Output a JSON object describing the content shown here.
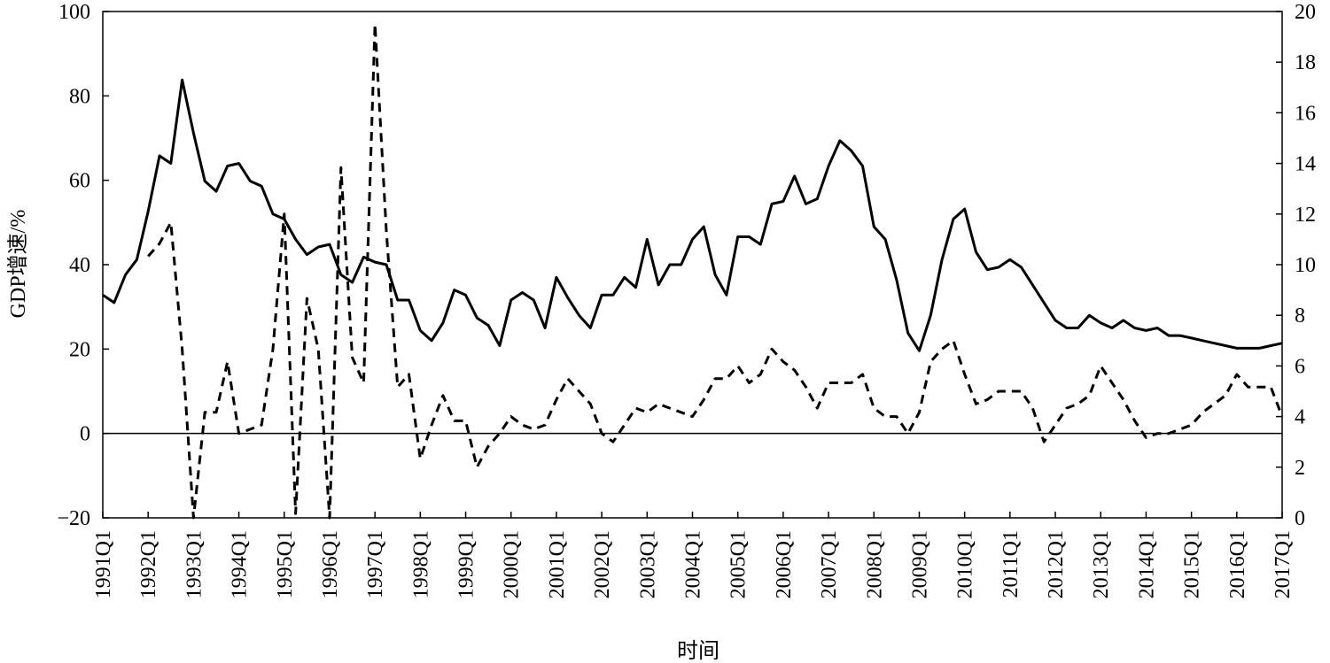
{
  "chart_data": {
    "type": "line",
    "ylabel": "GDP增速/%",
    "xlabel": "时间",
    "y_left": {
      "min": -20,
      "max": 100,
      "ticks": [
        "−20",
        "0",
        "20",
        "40",
        "60",
        "80",
        "100"
      ]
    },
    "y_right": {
      "min": 0,
      "max": 20,
      "ticks": [
        "0",
        "2",
        "4",
        "6",
        "8",
        "10",
        "12",
        "14",
        "16",
        "18",
        "20"
      ]
    },
    "x_ticks": [
      "1991Q1",
      "1992Q1",
      "1993Q1",
      "1994Q1",
      "1995Q1",
      "1996Q1",
      "1997Q1",
      "1998Q1",
      "1999Q1",
      "2000Q1",
      "2001Q1",
      "2002Q1",
      "2003Q1",
      "2004Q1",
      "2005Q1",
      "2006Q1",
      "2007Q1",
      "2008Q1",
      "2009Q1",
      "2010Q1",
      "2011Q1",
      "2012Q1",
      "2013Q1",
      "2014Q1",
      "2015Q1",
      "2016Q1",
      "2017Q1"
    ],
    "grid": false,
    "legend": "none",
    "series": [
      {
        "style": "solid",
        "axis": "right",
        "color": "#000000",
        "points": [
          [
            1991.0,
            8.8
          ],
          [
            1991.25,
            8.5
          ],
          [
            1991.5,
            9.6
          ],
          [
            1991.75,
            10.2
          ],
          [
            1992.0,
            12.1
          ],
          [
            1992.25,
            14.3
          ],
          [
            1992.5,
            14.0
          ],
          [
            1992.75,
            17.3
          ],
          [
            1993.0,
            15.2
          ],
          [
            1993.25,
            13.3
          ],
          [
            1993.5,
            12.9
          ],
          [
            1993.75,
            13.9
          ],
          [
            1994.0,
            14.0
          ],
          [
            1994.25,
            13.3
          ],
          [
            1994.5,
            13.1
          ],
          [
            1994.75,
            12.0
          ],
          [
            1995.0,
            11.8
          ],
          [
            1995.25,
            11.0
          ],
          [
            1995.5,
            10.4
          ],
          [
            1995.75,
            10.7
          ],
          [
            1996.0,
            10.8
          ],
          [
            1996.25,
            9.6
          ],
          [
            1996.5,
            9.3
          ],
          [
            1996.75,
            10.3
          ],
          [
            1997.0,
            10.1
          ],
          [
            1997.25,
            10.0
          ],
          [
            1997.5,
            8.6
          ],
          [
            1997.75,
            8.6
          ],
          [
            1998.0,
            7.4
          ],
          [
            1998.25,
            7.0
          ],
          [
            1998.5,
            7.7
          ],
          [
            1998.75,
            9.0
          ],
          [
            1999.0,
            8.8
          ],
          [
            1999.25,
            7.9
          ],
          [
            1999.5,
            7.6
          ],
          [
            1999.75,
            6.8
          ],
          [
            2000.0,
            8.6
          ],
          [
            2000.25,
            8.9
          ],
          [
            2000.5,
            8.6
          ],
          [
            2000.75,
            7.5
          ],
          [
            2001.0,
            9.5
          ],
          [
            2001.25,
            8.7
          ],
          [
            2001.5,
            8.0
          ],
          [
            2001.75,
            7.5
          ],
          [
            2002.0,
            8.8
          ],
          [
            2002.25,
            8.8
          ],
          [
            2002.5,
            9.5
          ],
          [
            2002.75,
            9.1
          ],
          [
            2003.0,
            11.0
          ],
          [
            2003.25,
            9.2
          ],
          [
            2003.5,
            10.0
          ],
          [
            2003.75,
            10.0
          ],
          [
            2004.0,
            11.0
          ],
          [
            2004.25,
            11.5
          ],
          [
            2004.5,
            9.6
          ],
          [
            2004.75,
            8.8
          ],
          [
            2005.0,
            11.1
          ],
          [
            2005.25,
            11.1
          ],
          [
            2005.5,
            10.8
          ],
          [
            2005.75,
            12.4
          ],
          [
            2006.0,
            12.5
          ],
          [
            2006.25,
            13.5
          ],
          [
            2006.5,
            12.4
          ],
          [
            2006.75,
            12.6
          ],
          [
            2007.0,
            13.9
          ],
          [
            2007.25,
            14.9
          ],
          [
            2007.5,
            14.5
          ],
          [
            2007.75,
            13.9
          ],
          [
            2008.0,
            11.5
          ],
          [
            2008.25,
            11.0
          ],
          [
            2008.5,
            9.4
          ],
          [
            2008.75,
            7.3
          ],
          [
            2009.0,
            6.6
          ],
          [
            2009.25,
            8.0
          ],
          [
            2009.5,
            10.2
          ],
          [
            2009.75,
            11.8
          ],
          [
            2010.0,
            12.2
          ],
          [
            2010.25,
            10.5
          ],
          [
            2010.5,
            9.8
          ],
          [
            2010.75,
            9.9
          ],
          [
            2011.0,
            10.2
          ],
          [
            2011.25,
            9.9
          ],
          [
            2011.5,
            9.2
          ],
          [
            2011.75,
            8.5
          ],
          [
            2012.0,
            7.8
          ],
          [
            2012.25,
            7.5
          ],
          [
            2012.5,
            7.5
          ],
          [
            2012.75,
            8.0
          ],
          [
            2013.0,
            7.7
          ],
          [
            2013.25,
            7.5
          ],
          [
            2013.5,
            7.8
          ],
          [
            2013.75,
            7.5
          ],
          [
            2014.0,
            7.4
          ],
          [
            2014.25,
            7.5
          ],
          [
            2014.5,
            7.2
          ],
          [
            2014.75,
            7.2
          ],
          [
            2015.0,
            7.1
          ],
          [
            2015.25,
            7.0
          ],
          [
            2015.5,
            6.9
          ],
          [
            2015.75,
            6.8
          ],
          [
            2016.0,
            6.7
          ],
          [
            2016.25,
            6.7
          ],
          [
            2016.5,
            6.7
          ],
          [
            2016.75,
            6.8
          ],
          [
            2017.0,
            6.9
          ]
        ]
      },
      {
        "style": "dashed",
        "axis": "left",
        "color": "#000000",
        "points": [
          [
            1992.0,
            42
          ],
          [
            1992.25,
            45
          ],
          [
            1992.5,
            50
          ],
          [
            1992.75,
            20
          ],
          [
            1993.0,
            -20
          ],
          [
            1993.25,
            5
          ],
          [
            1993.5,
            5
          ],
          [
            1993.75,
            17
          ],
          [
            1994.0,
            0
          ],
          [
            1994.25,
            1
          ],
          [
            1994.5,
            2
          ],
          [
            1994.75,
            20
          ],
          [
            1995.0,
            52
          ],
          [
            1995.25,
            -19
          ],
          [
            1995.5,
            32
          ],
          [
            1995.75,
            20
          ],
          [
            1996.0,
            -20
          ],
          [
            1996.25,
            63
          ],
          [
            1996.5,
            18
          ],
          [
            1996.75,
            12
          ],
          [
            1997.0,
            97
          ],
          [
            1997.25,
            48
          ],
          [
            1997.5,
            11
          ],
          [
            1997.75,
            14
          ],
          [
            1998.0,
            -6
          ],
          [
            1998.25,
            2
          ],
          [
            1998.5,
            9
          ],
          [
            1998.75,
            3
          ],
          [
            1999.0,
            3
          ],
          [
            1999.25,
            -8
          ],
          [
            1999.5,
            -3
          ],
          [
            1999.75,
            0
          ],
          [
            2000.0,
            4
          ],
          [
            2000.25,
            2
          ],
          [
            2000.5,
            1
          ],
          [
            2000.75,
            2
          ],
          [
            2001.0,
            8
          ],
          [
            2001.25,
            13
          ],
          [
            2001.5,
            10
          ],
          [
            2001.75,
            7
          ],
          [
            2002.0,
            0
          ],
          [
            2002.25,
            -2
          ],
          [
            2002.5,
            2
          ],
          [
            2002.75,
            6
          ],
          [
            2003.0,
            5
          ],
          [
            2003.25,
            7
          ],
          [
            2003.5,
            6
          ],
          [
            2003.75,
            5
          ],
          [
            2004.0,
            4
          ],
          [
            2004.25,
            8
          ],
          [
            2004.5,
            13
          ],
          [
            2004.75,
            13
          ],
          [
            2005.0,
            16
          ],
          [
            2005.25,
            12
          ],
          [
            2005.5,
            14
          ],
          [
            2005.75,
            20
          ],
          [
            2006.0,
            17
          ],
          [
            2006.25,
            15
          ],
          [
            2006.5,
            11
          ],
          [
            2006.75,
            6
          ],
          [
            2007.0,
            12
          ],
          [
            2007.25,
            12
          ],
          [
            2007.5,
            12
          ],
          [
            2007.75,
            14
          ],
          [
            2008.0,
            6
          ],
          [
            2008.25,
            4
          ],
          [
            2008.5,
            4
          ],
          [
            2008.75,
            0
          ],
          [
            2009.0,
            5
          ],
          [
            2009.25,
            17
          ],
          [
            2009.5,
            20
          ],
          [
            2009.75,
            22
          ],
          [
            2010.0,
            14
          ],
          [
            2010.25,
            7
          ],
          [
            2010.5,
            8
          ],
          [
            2010.75,
            10
          ],
          [
            2011.0,
            10
          ],
          [
            2011.25,
            10
          ],
          [
            2011.5,
            6
          ],
          [
            2011.75,
            -2
          ],
          [
            2012.0,
            2
          ],
          [
            2012.25,
            6
          ],
          [
            2012.5,
            7
          ],
          [
            2012.75,
            9
          ],
          [
            2013.0,
            16
          ],
          [
            2013.25,
            12
          ],
          [
            2013.5,
            8
          ],
          [
            2013.75,
            3
          ],
          [
            2014.0,
            -1
          ],
          [
            2014.25,
            0
          ],
          [
            2014.5,
            0
          ],
          [
            2014.75,
            1
          ],
          [
            2015.0,
            2
          ],
          [
            2015.25,
            5
          ],
          [
            2015.5,
            7
          ],
          [
            2015.75,
            9
          ],
          [
            2016.0,
            14
          ],
          [
            2016.25,
            11
          ],
          [
            2016.5,
            11
          ],
          [
            2016.75,
            11
          ],
          [
            2017.0,
            4
          ]
        ]
      }
    ]
  }
}
